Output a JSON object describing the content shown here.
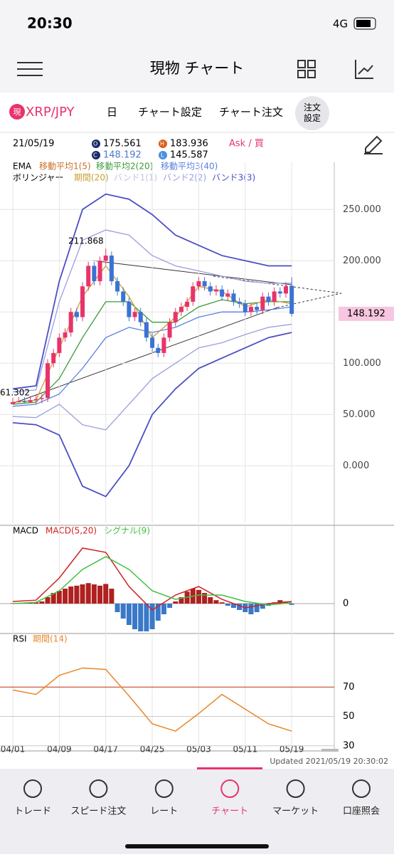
{
  "status": {
    "time": "20:30",
    "network": "4G"
  },
  "header": {
    "title": "現物 チャート"
  },
  "tabs": {
    "pair_badge": "現",
    "pair": "XRP/JPY",
    "interval": "日",
    "chart_settings": "チャート設定",
    "chart_order": "チャート注文",
    "order_settings": "注文\n設定"
  },
  "ohlc_info": {
    "date": "21/05/19",
    "open": 175.561,
    "high": 183.936,
    "close": 148.192,
    "low": 145.587,
    "ask": "Ask / 買"
  },
  "legend": {
    "ema": "EMA",
    "ema1": "移動平均1(5)",
    "ema2": "移動平均2(20)",
    "ema3": "移動平均3(40)",
    "bollinger": "ボリンジャー",
    "period": "期間(20)",
    "band1": "バンド1(1)",
    "band2": "バンド2(2)",
    "band3": "バンド3(3)"
  },
  "main_chart": {
    "type": "candlestick",
    "ylim": [
      -56,
      296
    ],
    "yticks": [
      {
        "value": 0,
        "label": "0.000"
      },
      {
        "value": 50,
        "label": "50.000"
      },
      {
        "value": 100,
        "label": "100.000"
      },
      {
        "value": 150,
        "label": "150.000"
      },
      {
        "value": 200,
        "label": "200.000"
      },
      {
        "value": 250,
        "label": "250.000"
      }
    ],
    "up_color": "#e8336b",
    "down_color": "#3b72d4",
    "open": [
      60,
      62,
      63,
      62,
      64,
      65,
      66,
      100,
      110,
      125,
      130,
      150,
      145,
      175,
      195,
      180,
      200,
      205,
      180,
      170,
      160,
      145,
      150,
      140,
      125,
      115,
      110,
      125,
      140,
      150,
      155,
      160,
      175,
      180,
      175,
      170,
      172,
      165,
      168,
      160,
      158,
      150,
      155,
      152,
      165,
      160,
      170,
      168,
      175.561
    ],
    "high": [
      66,
      67,
      67,
      68,
      69,
      70,
      104,
      114,
      129,
      134,
      154,
      154,
      179,
      199,
      199,
      204,
      211.868,
      209,
      184,
      174,
      164,
      154,
      154,
      144,
      129,
      119,
      129,
      144,
      154,
      159,
      164,
      179,
      184,
      184,
      179,
      176,
      176,
      172,
      172,
      164,
      162,
      159,
      159,
      169,
      169,
      174,
      174,
      179,
      183.936
    ],
    "low": [
      61.302,
      61.5,
      61.4,
      61.5,
      60,
      61,
      62,
      96,
      106,
      121,
      126,
      141,
      141,
      171,
      176,
      176,
      196,
      176,
      166,
      156,
      141,
      141,
      136,
      121,
      111,
      106,
      106,
      121,
      136,
      146,
      151,
      156,
      171,
      171,
      166,
      166,
      161,
      161,
      156,
      154,
      146,
      146,
      148,
      148,
      156,
      156,
      164,
      164,
      145.587
    ],
    "close": [
      62,
      63,
      62,
      64,
      65,
      66,
      100,
      110,
      125,
      130,
      150,
      145,
      175,
      195,
      180,
      200,
      205,
      180,
      170,
      160,
      145,
      150,
      140,
      125,
      115,
      110,
      125,
      140,
      150,
      155,
      160,
      175,
      180,
      175,
      170,
      172,
      165,
      168,
      160,
      158,
      150,
      155,
      152,
      165,
      160,
      170,
      168,
      175,
      148.192
    ],
    "indicator_days": [
      0,
      4,
      8,
      12,
      16,
      20,
      24,
      28,
      32,
      36,
      40,
      44,
      48
    ],
    "series": [
      {
        "name": "bb_upper3",
        "color": "#4a4fc4",
        "values": [
          75,
          78,
          180,
          250,
          265,
          260,
          245,
          225,
          215,
          205,
          200,
          195,
          195
        ]
      },
      {
        "name": "bb_lower3",
        "color": "#4a4fc4",
        "values": [
          42,
          40,
          30,
          -20,
          -30,
          0,
          50,
          75,
          95,
          105,
          115,
          125,
          130
        ]
      },
      {
        "name": "bb_upper2",
        "color": "#9a9ee0",
        "values": [
          72,
          74,
          160,
          220,
          230,
          225,
          205,
          195,
          190,
          185,
          180,
          178,
          178
        ]
      },
      {
        "name": "bb_lower2",
        "color": "#9a9ee0",
        "values": [
          48,
          47,
          60,
          40,
          35,
          60,
          85,
          100,
          115,
          120,
          128,
          135,
          138
        ]
      },
      {
        "name": "ema3",
        "color": "#5a7fe0",
        "values": [
          58,
          60,
          70,
          95,
          125,
          135,
          130,
          135,
          145,
          150,
          150,
          152,
          155
        ]
      },
      {
        "name": "ema2",
        "color": "#3a9a3a",
        "values": [
          60,
          62,
          85,
          125,
          160,
          160,
          140,
          140,
          155,
          162,
          158,
          160,
          160
        ]
      },
      {
        "name": "ema1",
        "color": "#c8a030",
        "values": [
          62,
          64,
          115,
          165,
          195,
          165,
          125,
          145,
          175,
          170,
          155,
          162,
          158
        ]
      }
    ]
  },
  "macd": {
    "type": "line",
    "title": "MACD",
    "macd_label": "MACD(5,20)",
    "signal_label": "シグナル(9)",
    "ylim": [
      -7,
      18
    ],
    "yticks": [
      0
    ],
    "histogram": [
      0.1,
      0.1,
      0.2,
      0.2,
      0.3,
      0.5,
      1.5,
      2.5,
      3,
      3.5,
      4,
      4.2,
      4.5,
      4.8,
      4.5,
      4.2,
      4.6,
      3.5,
      -2,
      -3.5,
      -5,
      -6,
      -6.5,
      -6.5,
      -6,
      -4,
      -2.5,
      -1,
      0.5,
      1.5,
      2.8,
      3.5,
      3.2,
      2.5,
      1.5,
      0.8,
      0.3,
      -0.5,
      -1,
      -1.5,
      -2,
      -2.5,
      -2,
      -1.2,
      -0.5,
      0.3,
      0.8,
      0.5,
      -0.3
    ],
    "series": [
      {
        "name": "macd",
        "color": "#d02020",
        "values": [
          0.5,
          0.8,
          6,
          13,
          12,
          4,
          -1.5,
          2,
          4,
          1,
          -1,
          0,
          0.5
        ]
      },
      {
        "name": "signal",
        "color": "#40c040",
        "values": [
          0,
          0.3,
          3,
          8,
          11,
          8,
          3,
          1,
          2,
          2,
          0.5,
          -0.3,
          0.2
        ]
      }
    ]
  },
  "rsi": {
    "type": "line",
    "title": "RSI",
    "period_label": "期間(14)",
    "ylim": [
      26.5,
      106.5
    ],
    "yticks": [
      30,
      50,
      70
    ],
    "color": "#e8872a",
    "values": [
      68,
      65,
      78,
      83,
      82,
      64,
      45,
      40,
      52,
      65,
      55,
      45,
      40
    ]
  },
  "x_axis": {
    "days": [
      0,
      8,
      16,
      24,
      32,
      40,
      48
    ],
    "labels": [
      "04/01",
      "04/09",
      "04/17",
      "04/25",
      "05/03",
      "05/11",
      "05/19"
    ]
  },
  "updated": "Updated  2021/05/19 20:30:02",
  "bottom_nav": [
    "トレード",
    "スピード注文",
    "レート",
    "チャート",
    "マーケット",
    "口座照会"
  ]
}
